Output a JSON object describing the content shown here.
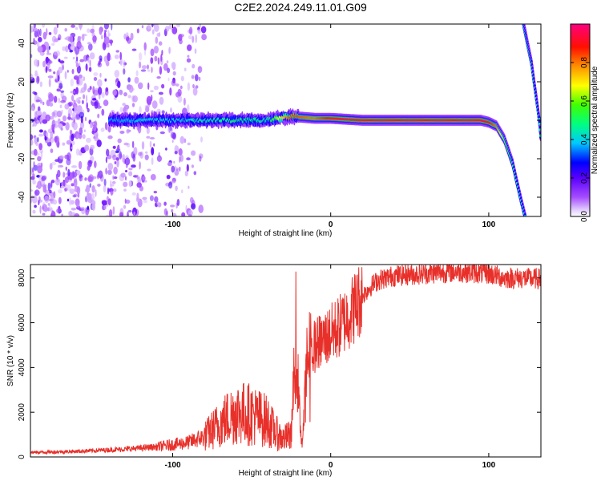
{
  "title": "C2E2.2024.249.11.01.G09",
  "chart_data": [
    {
      "type": "heatmap",
      "xlabel": "Height of straight line (km)",
      "ylabel": "Frequency (Hz)",
      "xlim": [
        -190,
        133
      ],
      "ylim": [
        -50,
        50
      ],
      "x_ticks": [
        -100,
        0,
        100
      ],
      "y_ticks": [
        -40,
        -20,
        0,
        20,
        40
      ],
      "colorbar": {
        "label": "Normalized spectral amplitude",
        "range": [
          0,
          1
        ],
        "ticks": [
          0.0,
          0.2,
          0.4,
          0.6,
          0.8
        ],
        "tick_labels": [
          "0.0",
          "0.2",
          "0.4",
          "0.6",
          "0.8"
        ],
        "colormap": [
          "#ffffff",
          "#c39bff",
          "#7f00ff",
          "#0000ff",
          "#00ffff",
          "#00ff00",
          "#ffff00",
          "#ff8000",
          "#ff0000",
          "#ff0080"
        ]
      },
      "features": {
        "noise_region_x": [
          -190,
          -80
        ],
        "main_band": {
          "x": [
            -140,
            -120,
            -100,
            -80,
            -60,
            -40,
            -25,
            -10,
            0,
            20,
            50,
            80,
            95,
            100,
            105,
            110,
            115,
            120,
            123
          ],
          "y": [
            0,
            0,
            0,
            0,
            0,
            0,
            2,
            1,
            1,
            0,
            0,
            0,
            0,
            -1,
            -3,
            -10,
            -22,
            -40,
            -50
          ],
          "amplitude": [
            0.35,
            0.4,
            0.4,
            0.45,
            0.5,
            0.45,
            0.85,
            0.8,
            0.9,
            0.95,
            0.95,
            0.95,
            0.95,
            0.9,
            0.8,
            0.6,
            0.5,
            0.45,
            0.45
          ]
        },
        "alias_band": {
          "x": [
            122,
            127,
            132,
            133
          ],
          "y": [
            50,
            30,
            0,
            -10
          ],
          "amplitude": [
            0.45,
            0.5,
            0.45,
            0.45
          ]
        }
      }
    },
    {
      "type": "line",
      "xlabel": "Height of straight line (km)",
      "ylabel": "SNR (10 * v/v)",
      "xlim": [
        -190,
        133
      ],
      "ylim": [
        0,
        8600
      ],
      "x_ticks": [
        -100,
        0,
        100
      ],
      "y_ticks": [
        0,
        2000,
        4000,
        6000,
        8000
      ],
      "color": "#e8302a",
      "series": [
        {
          "x": [
            -190,
            -160,
            -130,
            -110,
            -90,
            -80,
            -70,
            -60,
            -50,
            -40,
            -35,
            -30,
            -25,
            -22,
            -20,
            -18,
            -15,
            -12,
            -10,
            -5,
            0,
            5,
            10,
            15,
            20,
            25,
            30,
            40,
            50,
            60,
            80,
            100,
            110,
            120,
            133
          ],
          "y": [
            200,
            250,
            350,
            450,
            650,
            900,
            1500,
            2000,
            1900,
            1600,
            1100,
            800,
            1000,
            5200,
            2200,
            500,
            4200,
            4600,
            5000,
            5200,
            5500,
            5800,
            6200,
            6700,
            7200,
            7600,
            7900,
            8100,
            8150,
            8200,
            8300,
            8200,
            8000,
            8000,
            7950
          ]
        }
      ]
    }
  ]
}
